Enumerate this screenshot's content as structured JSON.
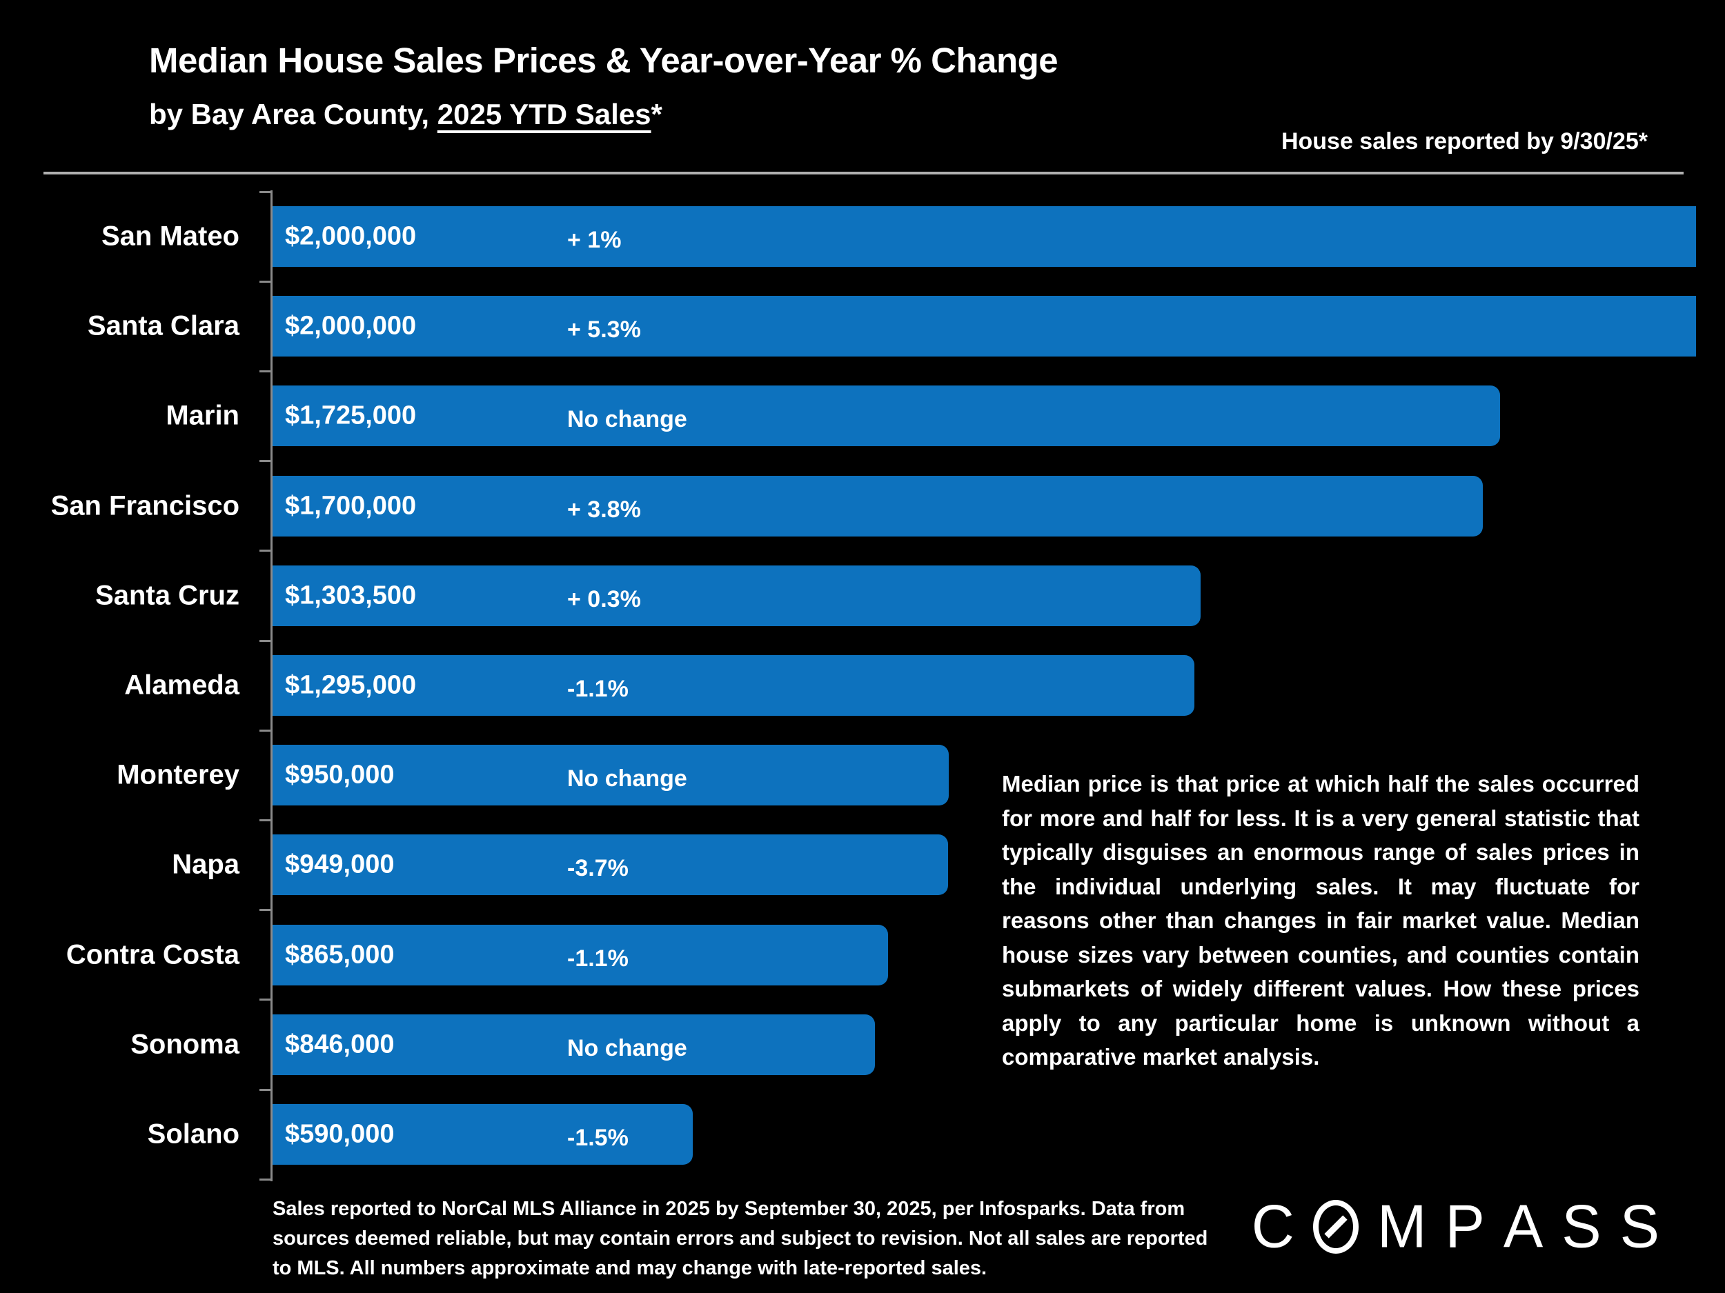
{
  "header": {
    "title": "Median House Sales Prices & Year-over-Year % Change",
    "subtitle_prefix": "by Bay Area County, ",
    "subtitle_underline": "2025 YTD Sales",
    "subtitle_suffix": "*",
    "right_note": "House sales reported by 9/30/25*"
  },
  "chart_data": {
    "type": "bar",
    "orientation": "horizontal",
    "title": "Median House Sales Prices & Year-over-Year % Change by Bay Area County, 2025 YTD Sales",
    "categories": [
      "San Mateo",
      "Santa Clara",
      "Marin",
      "San Francisco",
      "Santa Cruz",
      "Alameda",
      "Monterey",
      "Napa",
      "Contra Costa",
      "Sonoma",
      "Solano"
    ],
    "values": [
      2000000,
      2000000,
      1725000,
      1700000,
      1303500,
      1295000,
      950000,
      949000,
      865000,
      846000,
      590000
    ],
    "value_labels": [
      "$2,000,000",
      "$2,000,000",
      "$1,725,000",
      "$1,700,000",
      "$1,303,500",
      "$1,295,000",
      "$950,000",
      "$949,000",
      "$865,000",
      "$846,000",
      "$590,000"
    ],
    "yoy_change_labels": [
      "+ 1%",
      "+ 5.3%",
      "No change",
      "+ 3.8%",
      "+ 0.3%",
      "-1.1%",
      "No change",
      "-3.7%",
      "-1.1%",
      "No change",
      "-1.5%"
    ],
    "xlim": [
      0,
      2000000
    ],
    "grid": false,
    "bar_color": "#0D72BE",
    "axis_color": "#8a8a8a"
  },
  "note_paragraph": "Median price is that price at which half the sales occurred for more and half for less. It is a very general statistic that typically disguises an enormous range of sales prices in the individual underlying sales. It may fluctuate for reasons other than changes in fair market value. Median house sizes vary between counties, and counties contain submarkets of widely different values. How these prices apply to any particular home is unknown without a comparative market analysis.",
  "footnote": "Sales reported to NorCal MLS Alliance in 2025 by September 30, 2025, per Infosparks. Data from sources deemed reliable, but may contain errors and subject to revision. Not all sales are reported to MLS. All numbers approximate and may change with late-reported sales.",
  "logo": {
    "brand": "COMPASS"
  }
}
